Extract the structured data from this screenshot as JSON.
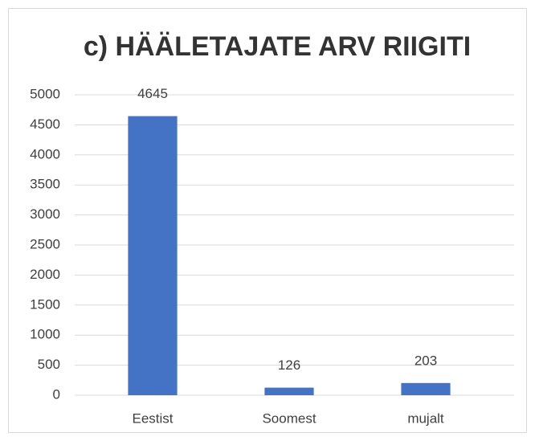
{
  "chart_data": {
    "type": "bar",
    "title": "c) HÄÄLETAJATE ARV RIIGITI",
    "categories": [
      "Eestist",
      "Soomest",
      "mujalt"
    ],
    "values": [
      4645,
      126,
      203
    ],
    "color": "#4472c4",
    "ylim": [
      0,
      5000
    ],
    "yticks": [
      0,
      500,
      1000,
      1500,
      2000,
      2500,
      3000,
      3500,
      4000,
      4500,
      5000
    ],
    "grid": true
  }
}
